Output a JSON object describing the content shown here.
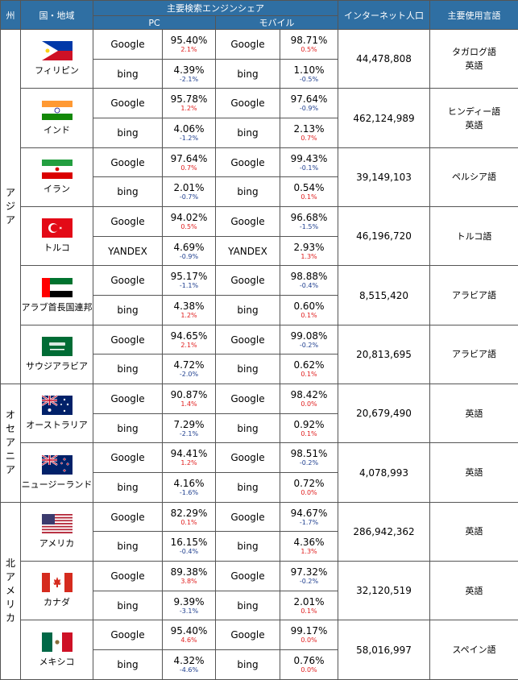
{
  "headers": {
    "continent": "州",
    "country": "国・地域",
    "share": "主要検索エンジンシェア",
    "pc": "PC",
    "mobile": "モバイル",
    "internet": "インターネット人口",
    "language": "主要使用言語"
  },
  "continents": [
    {
      "name": [
        "ア",
        "ジ",
        "ア"
      ],
      "rows": 6
    },
    {
      "name": [
        "オ",
        "セ",
        "ア",
        "ニ",
        "ア"
      ],
      "rows": 2
    },
    {
      "name": [
        "北",
        "ア",
        "メ",
        "リ",
        "カ"
      ],
      "rows": 3
    }
  ],
  "countries": [
    {
      "name": "フィリピン",
      "flag": "flag-philippines",
      "population": "44,478,808",
      "languages": [
        "タガログ語",
        "英語"
      ],
      "rows": [
        {
          "pc_engine": "Google",
          "pc_share": "95.40%",
          "pc_change": "2.1%",
          "mb_engine": "Google",
          "mb_share": "98.71%",
          "mb_change": "0.5%"
        },
        {
          "pc_engine": "bing",
          "pc_share": "4.39%",
          "pc_change": "-2.1%",
          "mb_engine": "bing",
          "mb_share": "1.10%",
          "mb_change": "-0.5%"
        }
      ]
    },
    {
      "name": "インド",
      "flag": "flag-india",
      "population": "462,124,989",
      "languages": [
        "ヒンディー語",
        "英語"
      ],
      "rows": [
        {
          "pc_engine": "Google",
          "pc_share": "95.78%",
          "pc_change": "1.2%",
          "mb_engine": "Google",
          "mb_share": "97.64%",
          "mb_change": "-0.9%"
        },
        {
          "pc_engine": "bing",
          "pc_share": "4.06%",
          "pc_change": "-1.2%",
          "mb_engine": "bing",
          "mb_share": "2.13%",
          "mb_change": "0.7%"
        }
      ]
    },
    {
      "name": "イラン",
      "flag": "flag-iran",
      "population": "39,149,103",
      "languages": [
        "ペルシア語"
      ],
      "rows": [
        {
          "pc_engine": "Google",
          "pc_share": "97.64%",
          "pc_change": "0.7%",
          "mb_engine": "Google",
          "mb_share": "99.43%",
          "mb_change": "-0.1%"
        },
        {
          "pc_engine": "bing",
          "pc_share": "2.01%",
          "pc_change": "-0.7%",
          "mb_engine": "bing",
          "mb_share": "0.54%",
          "mb_change": "0.1%"
        }
      ]
    },
    {
      "name": "トルコ",
      "flag": "flag-turkey",
      "population": "46,196,720",
      "languages": [
        "トルコ語"
      ],
      "rows": [
        {
          "pc_engine": "Google",
          "pc_share": "94.02%",
          "pc_change": "0.5%",
          "mb_engine": "Google",
          "mb_share": "96.68%",
          "mb_change": "-1.5%"
        },
        {
          "pc_engine": "YANDEX",
          "pc_share": "4.69%",
          "pc_change": "-0.9%",
          "mb_engine": "YANDEX",
          "mb_share": "2.93%",
          "mb_change": "1.3%"
        }
      ]
    },
    {
      "name": "アラブ首長国連邦",
      "flag": "flag-uae",
      "population": "8,515,420",
      "languages": [
        "アラビア語"
      ],
      "rows": [
        {
          "pc_engine": "Google",
          "pc_share": "95.17%",
          "pc_change": "-1.1%",
          "mb_engine": "Google",
          "mb_share": "98.88%",
          "mb_change": "-0.4%"
        },
        {
          "pc_engine": "bing",
          "pc_share": "4.38%",
          "pc_change": "1.2%",
          "mb_engine": "bing",
          "mb_share": "0.60%",
          "mb_change": "0.1%"
        }
      ]
    },
    {
      "name": "サウジアラビア",
      "flag": "flag-saudi-arabia",
      "population": "20,813,695",
      "languages": [
        "アラビア語"
      ],
      "rows": [
        {
          "pc_engine": "Google",
          "pc_share": "94.65%",
          "pc_change": "2.1%",
          "mb_engine": "Google",
          "mb_share": "99.08%",
          "mb_change": "-0.2%"
        },
        {
          "pc_engine": "bing",
          "pc_share": "4.72%",
          "pc_change": "-2.0%",
          "mb_engine": "bing",
          "mb_share": "0.62%",
          "mb_change": "0.1%"
        }
      ]
    },
    {
      "name": "オーストラリア",
      "flag": "flag-australia",
      "population": "20,679,490",
      "languages": [
        "英語"
      ],
      "rows": [
        {
          "pc_engine": "Google",
          "pc_share": "90.87%",
          "pc_change": "1.4%",
          "mb_engine": "Google",
          "mb_share": "98.42%",
          "mb_change": "0.0%"
        },
        {
          "pc_engine": "bing",
          "pc_share": "7.29%",
          "pc_change": "-2.1%",
          "mb_engine": "bing",
          "mb_share": "0.92%",
          "mb_change": "0.1%"
        }
      ]
    },
    {
      "name": "ニュージーランド",
      "flag": "flag-new-zealand",
      "population": "4,078,993",
      "languages": [
        "英語"
      ],
      "rows": [
        {
          "pc_engine": "Google",
          "pc_share": "94.41%",
          "pc_change": "1.2%",
          "mb_engine": "Google",
          "mb_share": "98.51%",
          "mb_change": "-0.2%"
        },
        {
          "pc_engine": "bing",
          "pc_share": "4.16%",
          "pc_change": "-1.6%",
          "mb_engine": "bing",
          "mb_share": "0.72%",
          "mb_change": "0.0%"
        }
      ]
    },
    {
      "name": "アメリカ",
      "flag": "flag-usa",
      "population": "286,942,362",
      "languages": [
        "英語"
      ],
      "rows": [
        {
          "pc_engine": "Google",
          "pc_share": "82.29%",
          "pc_change": "0.1%",
          "mb_engine": "Google",
          "mb_share": "94.67%",
          "mb_change": "-1.7%"
        },
        {
          "pc_engine": "bing",
          "pc_share": "16.15%",
          "pc_change": "-0.4%",
          "mb_engine": "bing",
          "mb_share": "4.36%",
          "mb_change": "1.3%"
        }
      ]
    },
    {
      "name": "カナダ",
      "flag": "flag-canada",
      "population": "32,120,519",
      "languages": [
        "英語"
      ],
      "rows": [
        {
          "pc_engine": "Google",
          "pc_share": "89.38%",
          "pc_change": "3.8%",
          "mb_engine": "Google",
          "mb_share": "97.32%",
          "mb_change": "-0.2%"
        },
        {
          "pc_engine": "bing",
          "pc_share": "9.39%",
          "pc_change": "-3.1%",
          "mb_engine": "bing",
          "mb_share": "2.01%",
          "mb_change": "0.1%"
        }
      ]
    },
    {
      "name": "メキシコ",
      "flag": "flag-mexico",
      "population": "58,016,997",
      "languages": [
        "スペイン語"
      ],
      "rows": [
        {
          "pc_engine": "Google",
          "pc_share": "95.40%",
          "pc_change": "4.6%",
          "mb_engine": "Google",
          "mb_share": "99.17%",
          "mb_change": "0.0%"
        },
        {
          "pc_engine": "bing",
          "pc_share": "4.32%",
          "pc_change": "-4.6%",
          "mb_engine": "bing",
          "mb_share": "0.76%",
          "mb_change": "0.0%"
        }
      ]
    }
  ],
  "colors": {
    "header_bg": "#2f6fa3",
    "positive": "#e02020",
    "negative": "#1f3f8f"
  }
}
